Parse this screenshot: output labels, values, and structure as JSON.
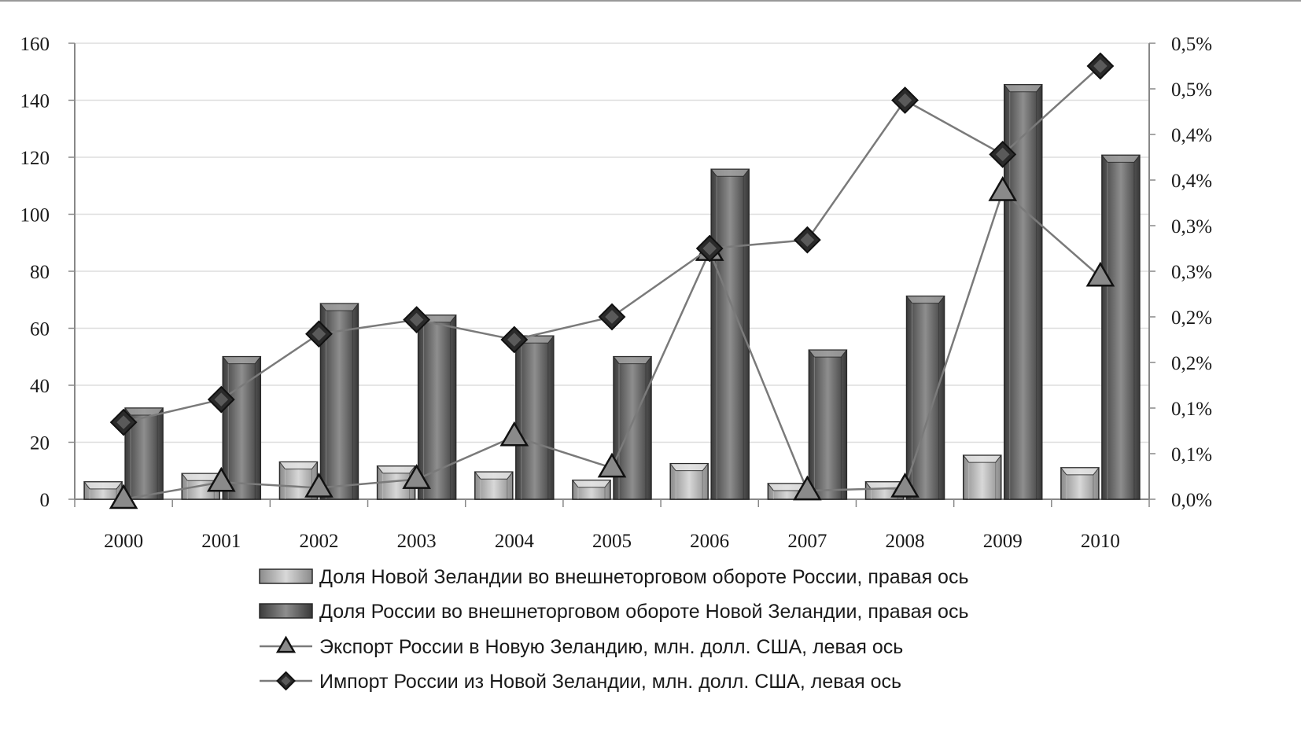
{
  "chart_data": {
    "type": "bar",
    "categories": [
      "2000",
      "2001",
      "2002",
      "2003",
      "2004",
      "2005",
      "2006",
      "2007",
      "2008",
      "2009",
      "2010"
    ],
    "left_axis": {
      "min": 0,
      "max": 160,
      "step": 20,
      "tick_labels": [
        "0",
        "20",
        "40",
        "60",
        "80",
        "100",
        "120",
        "140",
        "160"
      ]
    },
    "right_axis": {
      "min": 0,
      "max": 0.55,
      "tick_labels": [
        "0,0%",
        "0,1%",
        "0,1%",
        "0,2%",
        "0,2%",
        "0,3%",
        "0,3%",
        "0,4%",
        "0,4%",
        "0,5%",
        "0,5%"
      ]
    },
    "series": [
      {
        "name": "Доля Новой Зеландии во внешнеторговом обороте России, правая ось",
        "type": "bar",
        "axis": "right",
        "color": "#b4b4b4",
        "values": [
          0.021,
          0.031,
          0.045,
          0.04,
          0.033,
          0.023,
          0.043,
          0.019,
          0.021,
          0.053,
          0.038
        ]
      },
      {
        "name": "Доля России во внешнеторговом обороте Новой Зеландии, правая ось",
        "type": "bar",
        "axis": "right",
        "color": "#6e6e6e",
        "values": [
          0.11,
          0.172,
          0.236,
          0.222,
          0.197,
          0.172,
          0.398,
          0.18,
          0.245,
          0.5,
          0.415
        ]
      },
      {
        "name": "Экспорт России в Новую Зеландию, млн. долл. США, левая ось",
        "type": "line",
        "axis": "left",
        "marker": "triangle",
        "color": "#7a7a7a",
        "values": [
          0,
          6,
          4,
          7,
          22,
          11,
          87,
          3,
          4,
          108,
          78
        ]
      },
      {
        "name": "Импорт России из Новой Зеландии, млн. долл. США, левая ось",
        "type": "line",
        "axis": "left",
        "marker": "diamond",
        "color": "#7a7a7a",
        "values": [
          27,
          35,
          58,
          63,
          56,
          64,
          88,
          91,
          140,
          121,
          152
        ]
      }
    ],
    "legend_position": "bottom",
    "grid": "horizontal"
  }
}
